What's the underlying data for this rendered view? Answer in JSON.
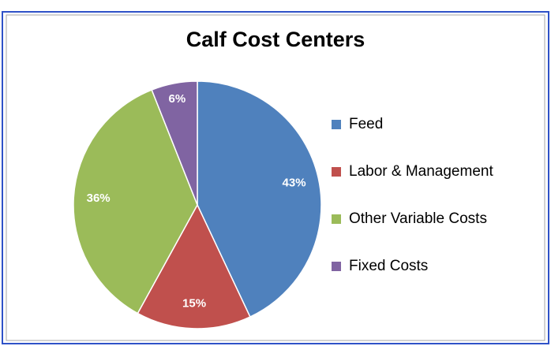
{
  "chart_data": {
    "type": "pie",
    "title": "Calf Cost Centers",
    "categories": [
      "Feed",
      "Labor & Management",
      "Other Variable Costs",
      "Fixed Costs"
    ],
    "values": [
      43,
      15,
      36,
      6
    ],
    "value_labels": [
      "43%",
      "15%",
      "36%",
      "6%"
    ],
    "colors": [
      "#4f81bd",
      "#c0504d",
      "#9bbb59",
      "#8064a2"
    ],
    "legend": "right"
  }
}
